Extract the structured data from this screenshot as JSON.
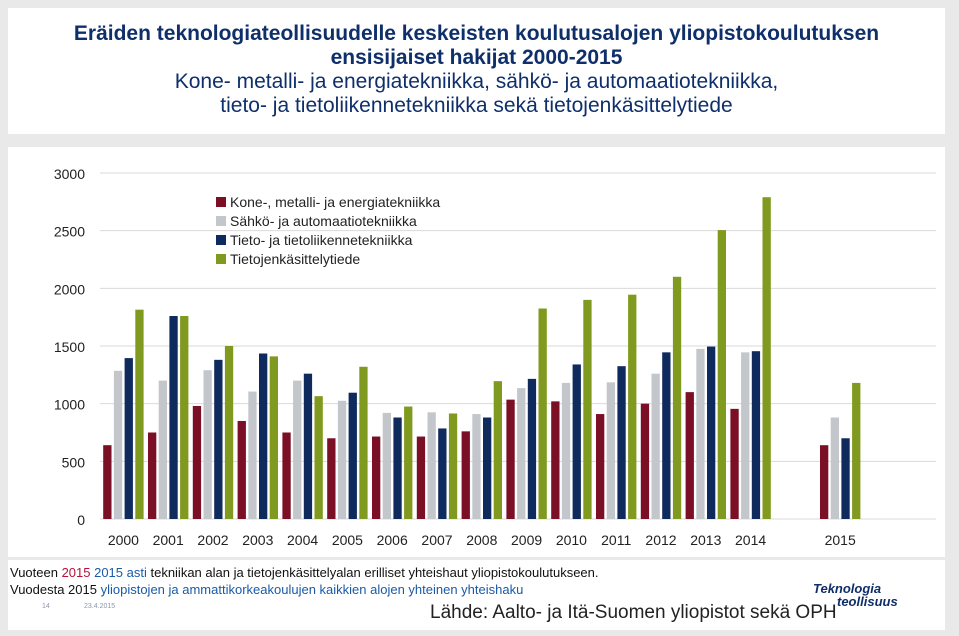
{
  "title": {
    "line1": "Eräiden teknologiateollisuudelle keskeisten koulutusalojen  yliopistokoulutuksen",
    "line2": "ensisijaiset hakijat 2000-2015",
    "line3": "Kone- metalli- ja energiatekniikka, sähkö- ja automaatiotekniikka,",
    "line4": "tieto- ja tietoliikennetekniikka sekä tietojenkäsittelytiede"
  },
  "colors": {
    "series1": "#7a0f26",
    "series2": "#c3c7cc",
    "series3": "#0f2a5c",
    "series4": "#7f9a1e",
    "grid": "#d9d9d9"
  },
  "chart_data": {
    "type": "bar",
    "categories": [
      "2000",
      "2001",
      "2002",
      "2003",
      "2004",
      "2005",
      "2006",
      "2007",
      "2008",
      "2009",
      "2010",
      "2011",
      "2012",
      "2013",
      "2014",
      "2015"
    ],
    "series": [
      {
        "name": "Kone-, metalli- ja energiatekniikka",
        "values": [
          640,
          750,
          980,
          850,
          750,
          700,
          715,
          715,
          760,
          1035,
          1020,
          910,
          1000,
          1100,
          955,
          640
        ]
      },
      {
        "name": "Sähkö- ja automaatiotekniikka",
        "values": [
          1285,
          1200,
          1290,
          1105,
          1200,
          1025,
          920,
          925,
          910,
          1135,
          1180,
          1185,
          1260,
          1475,
          1445,
          880
        ]
      },
      {
        "name": "Tieto- ja tietoliikennetekniikka",
        "values": [
          1395,
          1760,
          1380,
          1435,
          1260,
          1095,
          880,
          785,
          880,
          1215,
          1340,
          1325,
          1445,
          1495,
          1455,
          700
        ]
      },
      {
        "name": "Tietojenkäsittelytiede",
        "values": [
          1815,
          1760,
          1500,
          1410,
          1065,
          1320,
          975,
          915,
          1195,
          1825,
          1900,
          1945,
          2100,
          2505,
          2790,
          1180
        ]
      }
    ],
    "ylim": [
      0,
      3000
    ],
    "yticks": [
      "0",
      "500",
      "1000",
      "1500",
      "2000",
      "2500",
      "3000"
    ],
    "legend_position": "top-left",
    "grid": true
  },
  "footer": {
    "note1_pre": "Vuoteen ",
    "note1_year": "2015",
    "note1_mid": " 2015 asti",
    "note1_post": " tekniikan alan ja tietojenkäsittelyalan erilliset yhteishaut yliopistokoulutukseen.",
    "note2_pre": "Vuodesta 2015 ",
    "note2_hl": "yliopistojen ja ammattikorkeakoulujen kaikkien alojen yhteinen yhteishaku",
    "page_number": "14",
    "date": "23.4.2015",
    "source": "Lähde: Aalto- ja Itä-Suomen yliopistot sekä OPH",
    "logo_line1": "Teknologia",
    "logo_line2": "teollisuus"
  }
}
